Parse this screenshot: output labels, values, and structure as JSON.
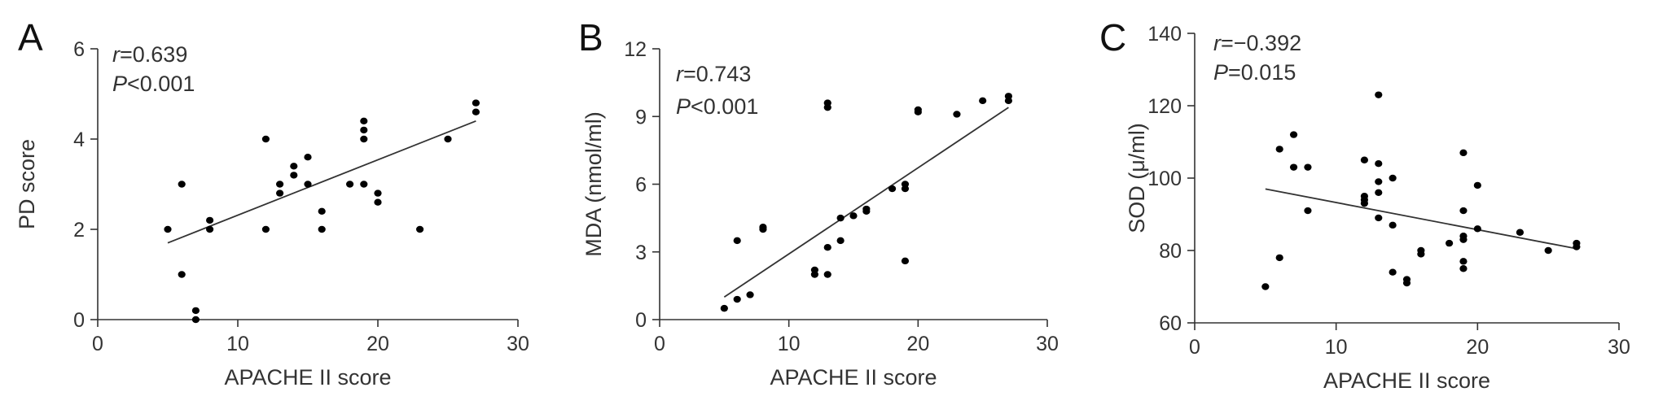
{
  "chart_data": [
    {
      "type": "scatter",
      "panel_label": "A",
      "stat_r": "=0.639",
      "stat_p": "<0.001",
      "xlabel": "APACHE II score",
      "ylabel": "PD score",
      "xlim": [
        0,
        30
      ],
      "ylim": [
        0,
        6
      ],
      "xticks": [
        0,
        10,
        20,
        30
      ],
      "yticks": [
        0,
        2,
        4,
        6
      ],
      "x_tick_labels": [
        "0",
        "10",
        "20",
        "30"
      ],
      "y_tick_labels": [
        "0",
        "2",
        "4",
        "6"
      ],
      "points": [
        [
          5,
          2
        ],
        [
          6,
          3
        ],
        [
          6,
          1
        ],
        [
          7,
          0.2
        ],
        [
          7,
          0
        ],
        [
          8,
          2.2
        ],
        [
          8,
          2
        ],
        [
          12,
          4
        ],
        [
          12,
          2
        ],
        [
          13,
          3
        ],
        [
          13,
          2.8
        ],
        [
          14,
          3.4
        ],
        [
          14,
          3.2
        ],
        [
          15,
          3.6
        ],
        [
          15,
          3
        ],
        [
          16,
          2.4
        ],
        [
          16,
          2
        ],
        [
          18,
          3
        ],
        [
          19,
          4.4
        ],
        [
          19,
          4.2
        ],
        [
          19,
          4
        ],
        [
          19,
          3
        ],
        [
          20,
          2.8
        ],
        [
          20,
          2.6
        ],
        [
          23,
          2
        ],
        [
          25,
          4
        ],
        [
          27,
          4.8
        ],
        [
          27,
          4.6
        ]
      ],
      "fit_line": {
        "x": [
          5,
          27
        ],
        "y": [
          1.7,
          4.4
        ]
      }
    },
    {
      "type": "scatter",
      "panel_label": "B",
      "stat_r": "=0.743",
      "stat_p": "<0.001",
      "xlabel": "APACHE II score",
      "ylabel": "MDA (nmol/ml)",
      "xlim": [
        0,
        30
      ],
      "ylim": [
        0,
        12
      ],
      "xticks": [
        0,
        10,
        20,
        30
      ],
      "yticks": [
        0,
        3,
        6,
        9,
        12
      ],
      "x_tick_labels": [
        "0",
        "10",
        "20",
        "30"
      ],
      "y_tick_labels": [
        "0",
        "3",
        "6",
        "9",
        "12"
      ],
      "points": [
        [
          5,
          0.5
        ],
        [
          6,
          3.5
        ],
        [
          6,
          0.9
        ],
        [
          7,
          1.1
        ],
        [
          8,
          4.1
        ],
        [
          8,
          4.0
        ],
        [
          12,
          2.2
        ],
        [
          12,
          2.0
        ],
        [
          13,
          9.6
        ],
        [
          13,
          9.4
        ],
        [
          13,
          3.2
        ],
        [
          13,
          2.0
        ],
        [
          14,
          4.5
        ],
        [
          14,
          3.5
        ],
        [
          15,
          4.6
        ],
        [
          16,
          4.9
        ],
        [
          16,
          4.8
        ],
        [
          18,
          5.8
        ],
        [
          19,
          6.0
        ],
        [
          19,
          5.8
        ],
        [
          19,
          2.6
        ],
        [
          20,
          9.3
        ],
        [
          20,
          9.2
        ],
        [
          23,
          9.1
        ],
        [
          25,
          9.7
        ],
        [
          27,
          9.9
        ],
        [
          27,
          9.7
        ]
      ],
      "fit_line": {
        "x": [
          5,
          27
        ],
        "y": [
          1.0,
          9.4
        ]
      }
    },
    {
      "type": "scatter",
      "panel_label": "C",
      "stat_r": "=−0.392",
      "stat_p": "=0.015",
      "xlabel": "APACHE II score",
      "ylabel": "SOD (μ/ml)",
      "xlim": [
        0,
        30
      ],
      "ylim": [
        60,
        140
      ],
      "xticks": [
        0,
        10,
        20,
        30
      ],
      "yticks": [
        60,
        80,
        100,
        120,
        140
      ],
      "x_tick_labels": [
        "0",
        "10",
        "20",
        "30"
      ],
      "y_tick_labels": [
        "60",
        "80",
        "100",
        "120",
        "140"
      ],
      "points": [
        [
          5,
          70
        ],
        [
          6,
          108
        ],
        [
          6,
          78
        ],
        [
          7,
          112
        ],
        [
          7,
          103
        ],
        [
          8,
          103
        ],
        [
          8,
          91
        ],
        [
          12,
          105
        ],
        [
          12,
          95
        ],
        [
          12,
          94
        ],
        [
          12,
          93
        ],
        [
          13,
          123
        ],
        [
          13,
          104
        ],
        [
          13,
          99
        ],
        [
          13,
          96
        ],
        [
          13,
          89
        ],
        [
          14,
          100
        ],
        [
          14,
          87
        ],
        [
          14,
          74
        ],
        [
          15,
          72
        ],
        [
          15,
          71
        ],
        [
          16,
          80
        ],
        [
          16,
          79
        ],
        [
          18,
          82
        ],
        [
          19,
          107
        ],
        [
          19,
          91
        ],
        [
          19,
          84
        ],
        [
          19,
          83
        ],
        [
          19,
          77
        ],
        [
          19,
          75
        ],
        [
          20,
          98
        ],
        [
          20,
          86
        ],
        [
          23,
          85
        ],
        [
          25,
          80
        ],
        [
          27,
          82
        ],
        [
          27,
          81
        ]
      ],
      "fit_line": {
        "x": [
          5,
          27
        ],
        "y": [
          97,
          80.5
        ]
      }
    }
  ]
}
